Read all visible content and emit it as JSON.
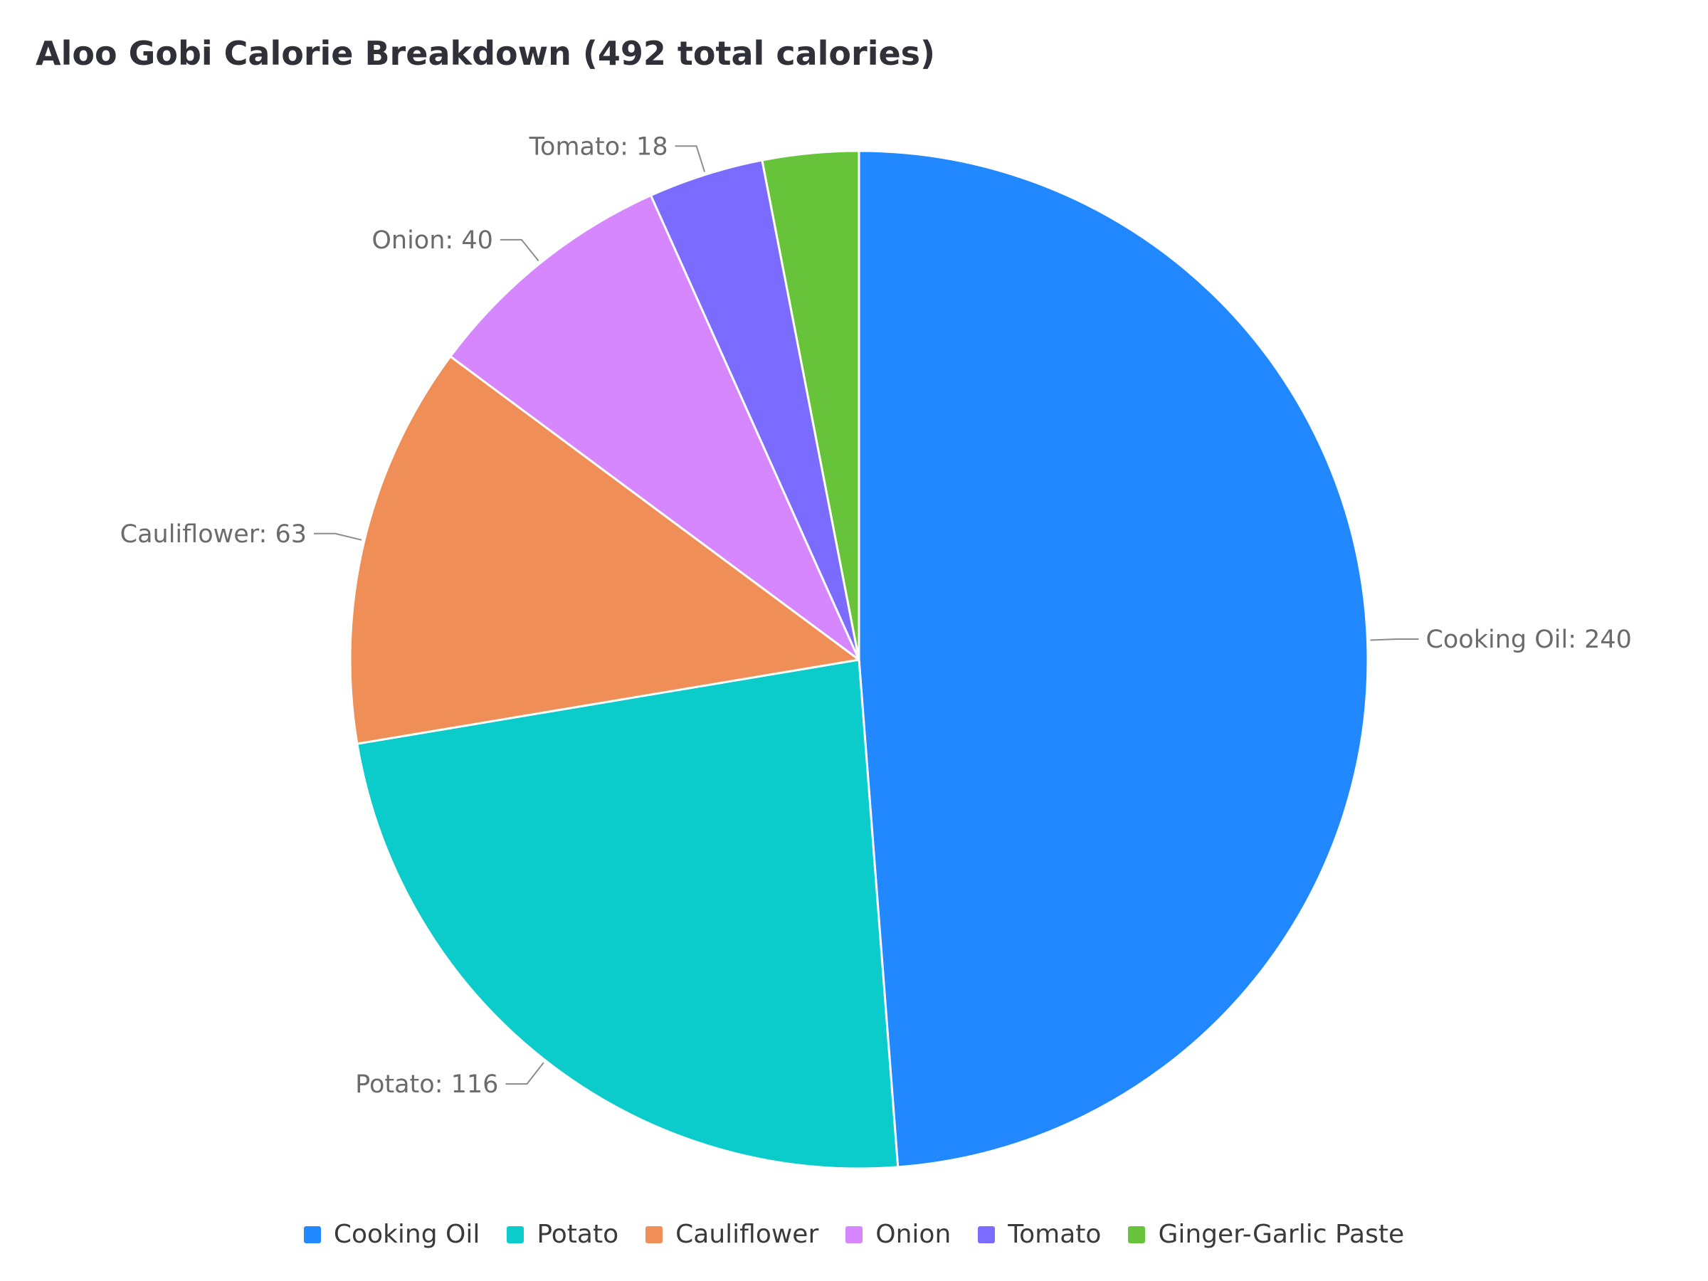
{
  "chart_data": {
    "type": "pie",
    "title": "Aloo Gobi Calorie Breakdown (492 total calories)",
    "slices": [
      {
        "name": "Cooking Oil",
        "value": 240,
        "label": "Cooking Oil: 240",
        "color": "#2288ff"
      },
      {
        "name": "Potato",
        "value": 116,
        "label": "Potato: 116",
        "color": "#0bcbcb"
      },
      {
        "name": "Cauliflower",
        "value": 63,
        "label": "Cauliflower: 63",
        "color": "#f08e57"
      },
      {
        "name": "Onion",
        "value": 40,
        "label": "Onion: 40",
        "color": "#d687fd"
      },
      {
        "name": "Tomato",
        "value": 18,
        "label": "Tomato: 18",
        "color": "#7b6cff"
      },
      {
        "name": "Ginger-Garlic Paste",
        "value": 15,
        "label": "",
        "color": "#67c43a"
      }
    ],
    "legend_position": "bottom"
  }
}
